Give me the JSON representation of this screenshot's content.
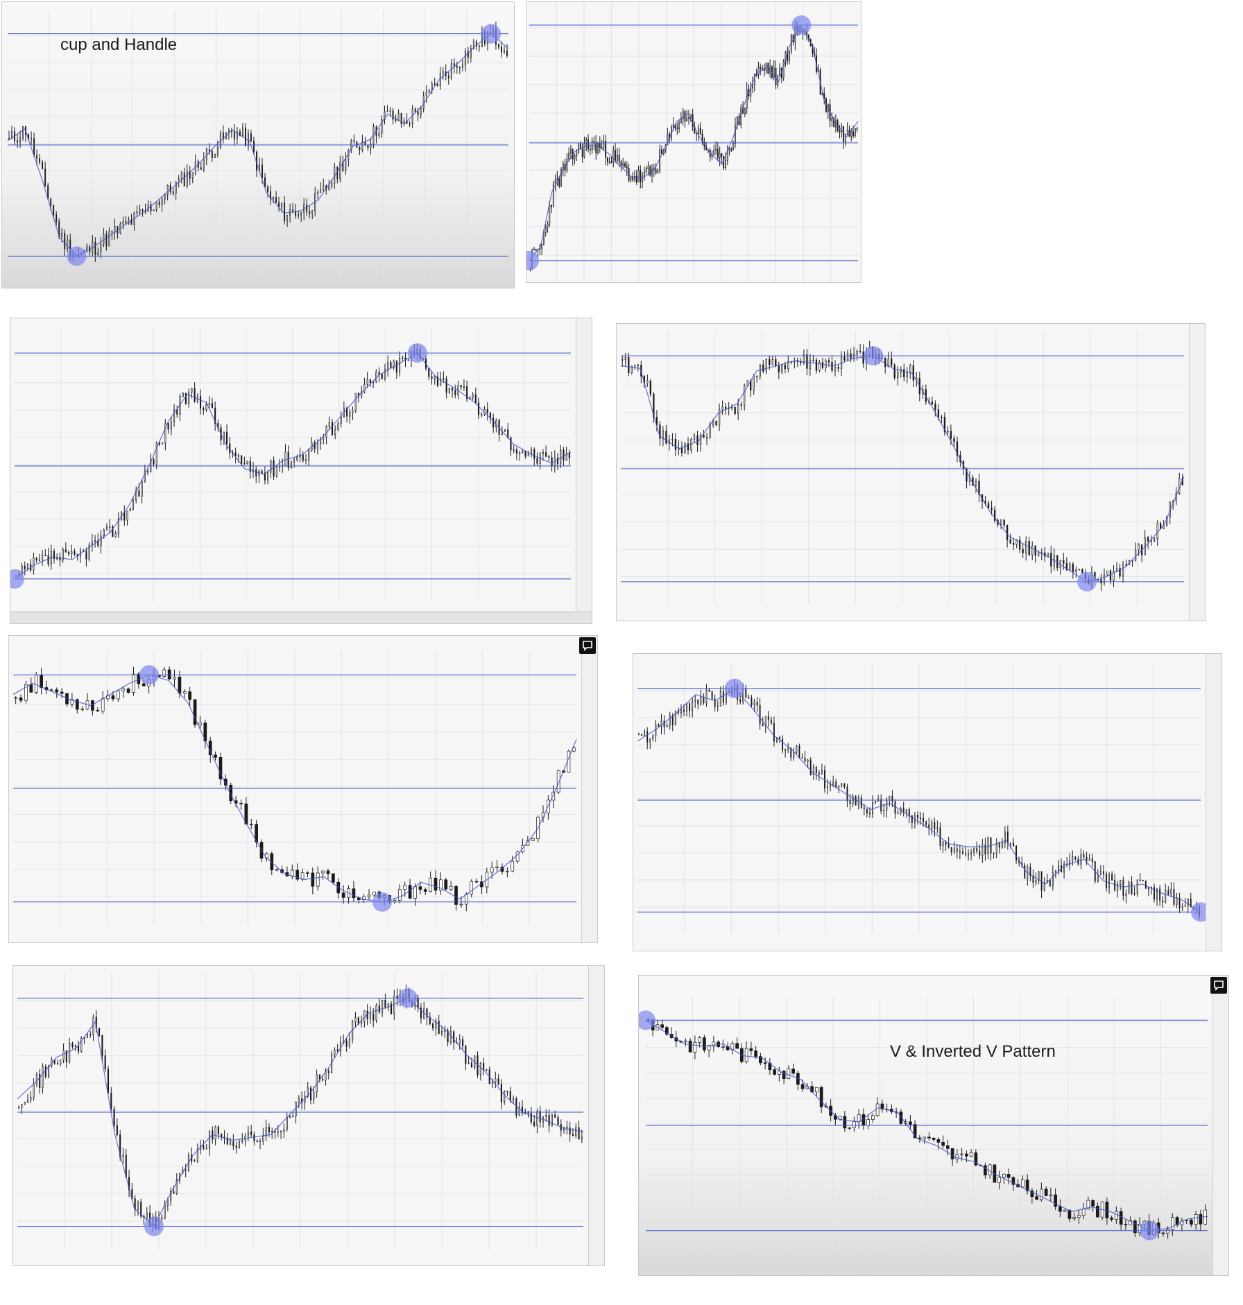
{
  "captions": {
    "cup_handle": "cup and Handle",
    "v_pattern": "V & Inverted V Pattern"
  },
  "colors": {
    "candle": "#1a1a1a",
    "drawing": "#3f4fc9",
    "highlight": "#7d88ec",
    "grid": "#e3e3e3",
    "background": "#f6f6f6"
  },
  "icons": [
    "chat-icon",
    "crosshair-icon"
  ],
  "chart_data": [
    {
      "type": "candlestick",
      "title": "",
      "pattern": "cup and handle",
      "grid": true,
      "y": [
        292,
        301,
        263,
        220,
        206,
        213,
        222,
        231,
        240,
        251,
        262,
        274,
        288,
        300,
        292,
        253,
        238,
        240,
        248,
        267,
        288,
        293,
        312,
        305,
        318,
        338,
        349,
        362,
        372,
        361
      ]
    },
    {
      "type": "candlestick",
      "title": "",
      "pattern": "cup and handle with trend line",
      "grid": true,
      "y": [
        1,
        10,
        46,
        61,
        72,
        76,
        76,
        71,
        63,
        56,
        55,
        60,
        75,
        92,
        97,
        82,
        71,
        64,
        82,
        104,
        123,
        128,
        118,
        142,
        155,
        141,
        106,
        91,
        82,
        92
      ]
    },
    {
      "type": "candlestick",
      "title": "",
      "pattern": "triangle / channel",
      "grid": true,
      "y": [
        1,
        6,
        9,
        8,
        13,
        18,
        28,
        42,
        58,
        68,
        65,
        50,
        41,
        39,
        44,
        46,
        52,
        60,
        68,
        75,
        79,
        83,
        74,
        70,
        65,
        58,
        50,
        46,
        43,
        47
      ]
    },
    {
      "type": "candlestick",
      "title": "",
      "pattern": "rounding bottom",
      "grid": true,
      "y": [
        88,
        87,
        60,
        55,
        58,
        69,
        73,
        86,
        88,
        90,
        89,
        88,
        91,
        92,
        87,
        85,
        72,
        58,
        43,
        30,
        20,
        16,
        12,
        7,
        2,
        4,
        8,
        16,
        25,
        44
      ]
    },
    {
      "type": "candlestick",
      "title": "",
      "pattern": "rounding bottom",
      "grid": true,
      "y": [
        88,
        92,
        89,
        86,
        84,
        88,
        92,
        95,
        93,
        85,
        70,
        55,
        42,
        30,
        24,
        22,
        23,
        18,
        15,
        14,
        16,
        21,
        19,
        15,
        20,
        25,
        31,
        40,
        55,
        72
      ]
    },
    {
      "type": "candlestick",
      "title": "",
      "pattern": "descending channel",
      "grid": true,
      "y": [
        150,
        154,
        159,
        165,
        163,
        167,
        160,
        152,
        147,
        140,
        136,
        132,
        128,
        130,
        126,
        122,
        117,
        116,
        116,
        118,
        108,
        104,
        110,
        112,
        105,
        103,
        104,
        101,
        99,
        95
      ]
    },
    {
      "type": "candlestick",
      "title": "",
      "pattern": "V & inverted V",
      "grid": true,
      "y": [
        115,
        121,
        129,
        132,
        141,
        103,
        78,
        72,
        85,
        96,
        103,
        101,
        102,
        103,
        110,
        117,
        126,
        137,
        144,
        146,
        149,
        143,
        138,
        130,
        124,
        116,
        110,
        108,
        105,
        104
      ]
    },
    {
      "type": "candlestick",
      "title": "",
      "pattern": "V & inverted V",
      "grid": true,
      "y": [
        97,
        92,
        87,
        86,
        87,
        82,
        81,
        75,
        72,
        63,
        55,
        54,
        60,
        58,
        47,
        44,
        39,
        37,
        32,
        28,
        24,
        20,
        16,
        18,
        16,
        12,
        8,
        9,
        13,
        14
      ]
    }
  ]
}
